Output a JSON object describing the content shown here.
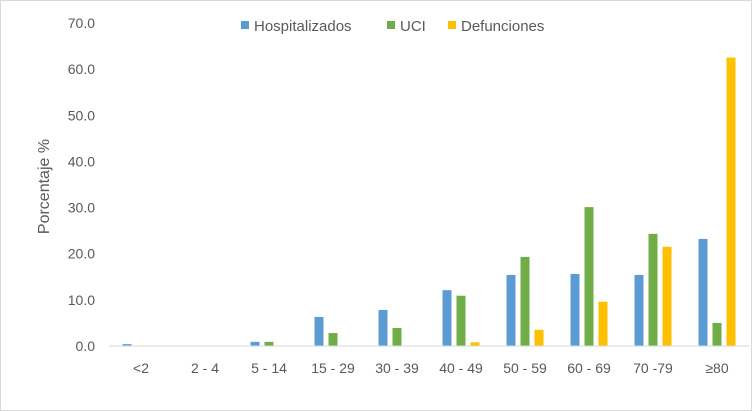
{
  "chart_data": {
    "type": "bar",
    "title": "",
    "xlabel": "",
    "ylabel": "Porcentaje %",
    "ylim": [
      0,
      70
    ],
    "y_ticks": [
      "0.0",
      "10.0",
      "20.0",
      "30.0",
      "40.0",
      "50.0",
      "60.0",
      "70.0"
    ],
    "y_tick_values": [
      0,
      10,
      20,
      30,
      40,
      50,
      60,
      70
    ],
    "grid": false,
    "legend_position": "top",
    "categories": [
      "<2",
      "2 - 4",
      "5 - 14",
      "15 - 29",
      "30 - 39",
      "40 - 49",
      "50 - 59",
      "60 - 69",
      "70 -79",
      "≥80"
    ],
    "series": [
      {
        "name": "Hospitalizados",
        "color": "#5b9bd5",
        "values": [
          0.4,
          0.0,
          0.9,
          6.3,
          7.8,
          12.1,
          15.4,
          15.6,
          15.4,
          23.2
        ]
      },
      {
        "name": "UCI",
        "color": "#70ad47",
        "values": [
          0.0,
          0.0,
          0.9,
          2.8,
          3.9,
          10.9,
          19.3,
          30.1,
          24.3,
          5.0
        ]
      },
      {
        "name": "Defunciones",
        "color": "#ffc000",
        "values": [
          0.0,
          0.0,
          0.0,
          0.0,
          0.0,
          0.8,
          3.5,
          9.6,
          21.5,
          62.5
        ]
      }
    ]
  }
}
